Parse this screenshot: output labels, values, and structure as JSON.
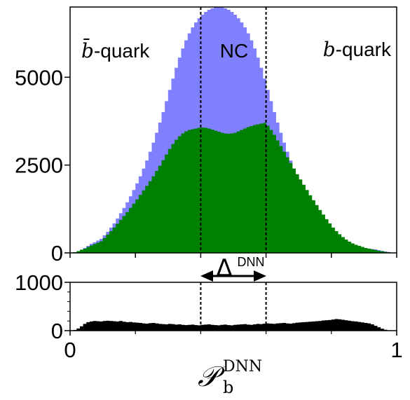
{
  "chart_data": [
    {
      "type": "bar",
      "panel": "main",
      "xlim": [
        0,
        1
      ],
      "ylim": [
        0,
        7000
      ],
      "y_ticks": [
        "0",
        "2500",
        "5000"
      ],
      "y_tick_values": [
        0,
        2500,
        5000
      ],
      "x_ticks_unlabeled": [
        0,
        0.2,
        0.4,
        0.6,
        0.8,
        1
      ],
      "bin_width": 0.01,
      "colors": {
        "total": "#8080ff",
        "partial": "#008000"
      },
      "series": [
        {
          "values": [
            5,
            20,
            50,
            90,
            140,
            200,
            260,
            300,
            350,
            400,
            500,
            600,
            720,
            840,
            980,
            1130,
            1280,
            1440,
            1610,
            1790,
            1980,
            2180,
            2400,
            2630,
            2880,
            3140,
            3420,
            3710,
            4010,
            4320,
            4640,
            4960,
            5270,
            5560,
            5820,
            6050,
            6250,
            6420,
            6560,
            6680,
            6780,
            6860,
            6920,
            6960,
            6990,
            7000,
            6990,
            6960,
            6920,
            6860,
            6780,
            6680,
            6560,
            6420,
            6250,
            6050,
            5820,
            5560,
            5270,
            4960,
            4640,
            4320,
            4010,
            3710,
            3420,
            3140,
            2880,
            2630,
            2400,
            2180,
            1980,
            1790,
            1610,
            1440,
            1280,
            1130,
            980,
            840,
            720,
            600,
            500,
            400,
            340,
            290,
            250,
            220,
            190,
            170,
            150,
            140,
            130,
            120,
            110,
            100,
            80,
            60,
            40,
            25,
            10,
            5
          ]
        },
        {
          "values": [
            5,
            20,
            50,
            90,
            120,
            170,
            210,
            250,
            290,
            330,
            420,
            520,
            620,
            720,
            830,
            940,
            1050,
            1160,
            1280,
            1400,
            1520,
            1650,
            1780,
            1910,
            2040,
            2180,
            2330,
            2480,
            2640,
            2800,
            2960,
            3100,
            3220,
            3320,
            3400,
            3460,
            3500,
            3520,
            3540,
            3560,
            3570,
            3560,
            3540,
            3510,
            3480,
            3450,
            3420,
            3400,
            3390,
            3400,
            3420,
            3460,
            3500,
            3540,
            3580,
            3610,
            3640,
            3660,
            3680,
            3700,
            3620,
            3500,
            3360,
            3200,
            3040,
            2880,
            2720,
            2560,
            2400,
            2240,
            2090,
            1940,
            1790,
            1640,
            1500,
            1360,
            1220,
            1090,
            960,
            840,
            720,
            620,
            530,
            450,
            380,
            320,
            270,
            230,
            200,
            170,
            140,
            120,
            100,
            80,
            60,
            45,
            30,
            20,
            10,
            5
          ]
        }
      ],
      "annotations": {
        "left": "-quark",
        "left_symbol": "b̄",
        "center": "NC",
        "right": "-quark",
        "right_symbol": "b"
      },
      "vlines": [
        0.4,
        0.6
      ],
      "delta_label": "Δ",
      "delta_sup": "DNN"
    },
    {
      "type": "bar",
      "panel": "ratio",
      "xlim": [
        0,
        1
      ],
      "ylim": [
        0,
        1000
      ],
      "y_ticks": [
        "0",
        "1000"
      ],
      "y_tick_values": [
        0,
        1000
      ],
      "x_ticks": [
        "0",
        "1"
      ],
      "x_tick_values": [
        0,
        1
      ],
      "color": "#000000",
      "values": [
        0,
        15,
        45,
        90,
        140,
        175,
        190,
        200,
        195,
        190,
        200,
        205,
        200,
        195,
        190,
        200,
        185,
        175,
        180,
        170,
        165,
        160,
        150,
        145,
        155,
        160,
        150,
        140,
        135,
        130,
        140,
        135,
        125,
        130,
        120,
        115,
        120,
        125,
        115,
        110,
        120,
        125,
        130,
        120,
        115,
        110,
        120,
        125,
        115,
        110,
        120,
        125,
        130,
        135,
        125,
        120,
        130,
        140,
        135,
        145,
        150,
        145,
        140,
        150,
        155,
        160,
        150,
        145,
        155,
        165,
        170,
        175,
        180,
        185,
        190,
        195,
        200,
        210,
        215,
        220,
        230,
        240,
        235,
        225,
        215,
        205,
        195,
        190,
        180,
        170,
        160,
        150,
        130,
        100,
        70,
        40,
        20,
        5,
        0,
        0
      ],
      "vlines": [
        0.4,
        0.6
      ],
      "xlabel": "𝒫",
      "xlabel_sub": "b",
      "xlabel_sup": "DNN"
    }
  ]
}
